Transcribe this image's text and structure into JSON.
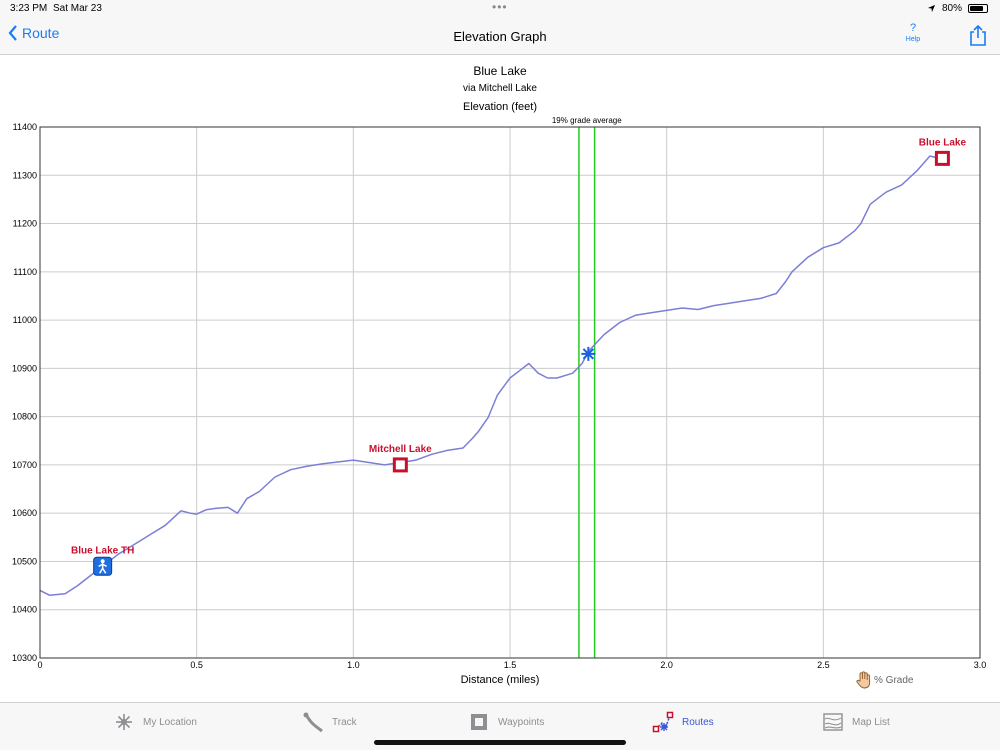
{
  "status": {
    "time": "3:23 PM",
    "date": "Sat Mar 23",
    "battery": "80%",
    "battery_level": 0.8
  },
  "nav": {
    "back_label": "Route",
    "title": "Elevation Graph",
    "help_label": "Help"
  },
  "chart_data": {
    "type": "line",
    "title": "Blue Lake",
    "subtitle": "via Mitchell Lake",
    "ylabel": "Elevation (feet)",
    "xlabel": "Distance (miles)",
    "xlim": [
      0,
      3.0
    ],
    "ylim": [
      10300,
      11400
    ],
    "x_ticks": [
      0,
      0.5,
      1.0,
      1.5,
      2.0,
      2.5,
      3.0
    ],
    "x_tick_labels": [
      "0",
      "0.5",
      "1.0",
      "1.5",
      "2.0",
      "2.5",
      "3.0"
    ],
    "y_ticks": [
      10300,
      10400,
      10500,
      10600,
      10700,
      10800,
      10900,
      11000,
      11100,
      11200,
      11300,
      11400
    ],
    "y_tick_labels": [
      "10300",
      "10400",
      "10500",
      "10600",
      "10700",
      "10800",
      "10900",
      "11000",
      "11100",
      "11200",
      "11300",
      "11400"
    ],
    "grid": true,
    "line_color": "#7b7fd6",
    "series": [
      {
        "x": [
          0,
          0.03,
          0.08,
          0.12,
          0.16,
          0.2,
          0.25,
          0.3,
          0.35,
          0.4,
          0.45,
          0.48,
          0.5,
          0.53,
          0.56,
          0.6,
          0.63,
          0.66,
          0.7,
          0.75,
          0.8,
          0.85,
          0.9,
          0.95,
          1.0,
          1.05,
          1.1,
          1.15,
          1.2,
          1.25,
          1.3,
          1.35,
          1.38,
          1.4,
          1.43,
          1.46,
          1.5,
          1.53,
          1.56,
          1.59,
          1.62,
          1.65,
          1.7,
          1.73,
          1.75,
          1.8,
          1.85,
          1.9,
          1.95,
          2.0,
          2.05,
          2.1,
          2.15,
          2.2,
          2.25,
          2.3,
          2.35,
          2.38,
          2.4,
          2.45,
          2.5,
          2.55,
          2.6,
          2.62,
          2.65,
          2.7,
          2.75,
          2.8,
          2.84,
          2.87,
          2.88
        ],
        "y": [
          10440,
          10430,
          10433,
          10450,
          10470,
          10490,
          10515,
          10535,
          10555,
          10575,
          10605,
          10600,
          10598,
          10607,
          10610,
          10612,
          10600,
          10630,
          10645,
          10675,
          10690,
          10697,
          10702,
          10706,
          10710,
          10705,
          10700,
          10705,
          10710,
          10722,
          10730,
          10735,
          10755,
          10770,
          10798,
          10845,
          10880,
          10895,
          10910,
          10890,
          10880,
          10880,
          10890,
          10910,
          10935,
          10970,
          10995,
          11010,
          11015,
          11020,
          11025,
          11022,
          11030,
          11035,
          11040,
          11045,
          11055,
          11080,
          11100,
          11130,
          11150,
          11160,
          11185,
          11200,
          11240,
          11265,
          11280,
          11310,
          11340,
          11335,
          11330
        ]
      }
    ],
    "markers": [
      {
        "label": "Blue Lake TH",
        "x": 0.2,
        "y": 10490,
        "icon": "hiker-icon",
        "color": "#c8102e"
      },
      {
        "label": "Mitchell Lake",
        "x": 1.15,
        "y": 10700,
        "icon": "lake-waypoint-icon",
        "color": "#c8102e"
      },
      {
        "label": "Blue Lake",
        "x": 2.88,
        "y": 11335,
        "icon": "lake-waypoint-icon",
        "color": "#c8102e"
      }
    ],
    "cursor": {
      "x": 1.75,
      "y": 10930,
      "icon": "position-cursor-icon"
    },
    "grade_band": {
      "x_start": 1.72,
      "x_end": 1.77,
      "label": "19% grade average",
      "color": "#22cc22"
    }
  },
  "grade_toggle": {
    "label": "% Grade"
  },
  "tabs": [
    {
      "label": "My Location",
      "icon": "location-icon",
      "active": false
    },
    {
      "label": "Track",
      "icon": "track-icon",
      "active": false
    },
    {
      "label": "Waypoints",
      "icon": "waypoints-icon",
      "active": false
    },
    {
      "label": "Routes",
      "icon": "routes-icon",
      "active": true
    },
    {
      "label": "Map List",
      "icon": "map-list-icon",
      "active": false
    }
  ]
}
